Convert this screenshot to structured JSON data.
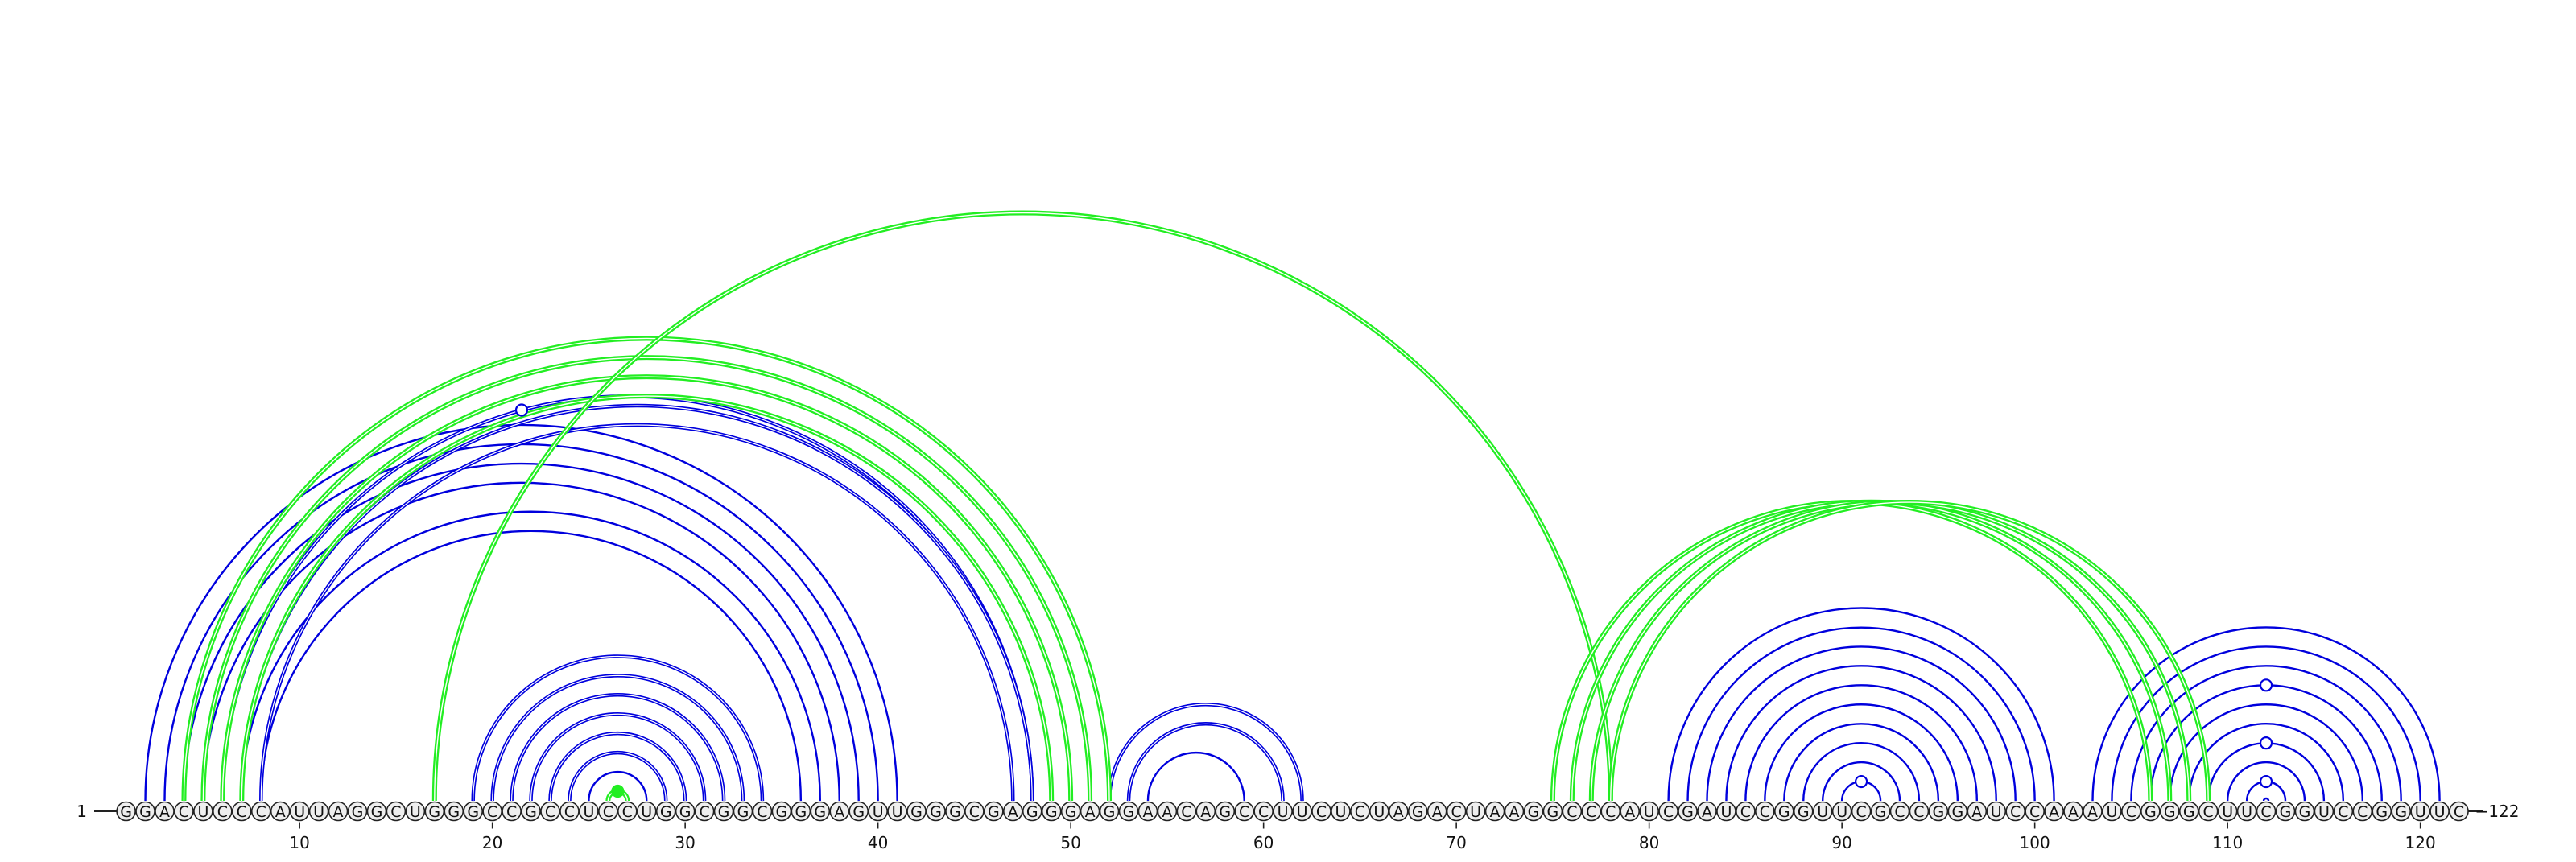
{
  "sequence": "GGACUCCCAUUAGGCUGGGCCGCCUCCUGGCGGCGGGAGUUGGGCGAGGGAGGAACAGCCUUCUCUAGACUAAGGCCCAUCGAUCCGGUUCGCCGGAUCCAAAUCGGGCUUCGGUCCGGUUC",
  "start_label": "1",
  "end_label": "122",
  "ticks": [
    "10",
    "20",
    "30",
    "40",
    "50",
    "60",
    "70",
    "80",
    "90",
    "100",
    "110",
    "120"
  ],
  "colors": {
    "blue": "#0000dd",
    "green": "#22ee22",
    "nucleotide_fill": "#eeeeee",
    "outline": "#222222"
  },
  "blue_arcs": [
    [
      2,
      41
    ],
    [
      3,
      40
    ],
    [
      4,
      39
    ],
    [
      5,
      38
    ],
    [
      7,
      37
    ],
    [
      8,
      36
    ],
    [
      6,
      48
    ],
    [
      7,
      48
    ],
    [
      8,
      47
    ],
    [
      19,
      34
    ],
    [
      20,
      33
    ],
    [
      21,
      32
    ],
    [
      22,
      31
    ],
    [
      23,
      30
    ],
    [
      24,
      29
    ],
    [
      25,
      28
    ],
    [
      52,
      62
    ],
    [
      53,
      61
    ],
    [
      54,
      59
    ],
    [
      81,
      101
    ],
    [
      82,
      100
    ],
    [
      83,
      99
    ],
    [
      84,
      98
    ],
    [
      85,
      97
    ],
    [
      86,
      96
    ],
    [
      87,
      95
    ],
    [
      88,
      94
    ],
    [
      89,
      93
    ],
    [
      90,
      92
    ],
    [
      103,
      121
    ],
    [
      104,
      120
    ],
    [
      105,
      119
    ],
    [
      106,
      118
    ],
    [
      107,
      117
    ],
    [
      108,
      116
    ],
    [
      109,
      115
    ],
    [
      110,
      114
    ],
    [
      111,
      113
    ],
    [
      112,
      112
    ]
  ],
  "blue_double_arcs": [
    [
      19,
      34
    ],
    [
      20,
      33
    ],
    [
      21,
      32
    ],
    [
      22,
      31
    ],
    [
      23,
      30
    ],
    [
      24,
      29
    ],
    [
      52,
      62
    ],
    [
      53,
      61
    ],
    [
      6,
      48
    ],
    [
      7,
      48
    ],
    [
      8,
      47
    ]
  ],
  "green_arcs": [
    [
      4,
      52
    ],
    [
      5,
      51
    ],
    [
      6,
      50
    ],
    [
      7,
      49
    ],
    [
      17,
      78
    ],
    [
      26,
      27
    ],
    [
      75,
      106
    ],
    [
      76,
      107
    ],
    [
      77,
      108
    ],
    [
      78,
      109
    ]
  ],
  "markers": [
    {
      "color": "blue",
      "pair": [
        6,
        48
      ],
      "filled": false
    },
    {
      "color": "green",
      "pair": [
        26,
        27
      ],
      "filled": true
    },
    {
      "color": "blue",
      "pair": [
        90,
        92
      ],
      "filled": false
    },
    {
      "color": "blue",
      "pair": [
        106,
        118
      ],
      "filled": false
    },
    {
      "color": "blue",
      "pair": [
        109,
        115
      ],
      "filled": false
    },
    {
      "color": "blue",
      "pair": [
        111,
        113
      ],
      "filled": false
    }
  ]
}
